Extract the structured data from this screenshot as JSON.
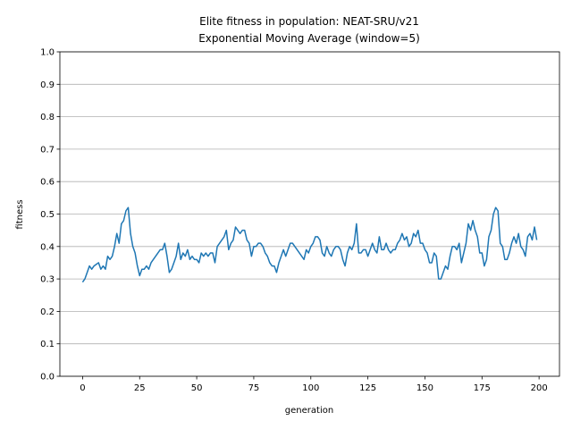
{
  "chart_data": {
    "type": "line",
    "title": [
      "Elite fitness in population: NEAT-SRU/v21",
      "Exponential Moving Average (window=5)"
    ],
    "xlabel": "generation",
    "ylabel": "fitness",
    "xlim": [
      -9.95,
      208.95
    ],
    "xticks": [
      0,
      25,
      50,
      75,
      100,
      125,
      150,
      175,
      200
    ],
    "ylim": [
      0,
      1
    ],
    "yticks": [
      {
        "value": 0,
        "label": "0.0"
      },
      0.1,
      0.2,
      0.3,
      0.4,
      0.5,
      0.6,
      0.7,
      0.8,
      0.9,
      {
        "value": 1,
        "label": "1.0"
      }
    ],
    "grid": "y",
    "series": [
      {
        "color": "#1f77b4",
        "x": [
          0,
          1,
          2,
          3,
          4,
          5,
          6,
          7,
          8,
          9,
          10,
          11,
          12,
          13,
          14,
          15,
          16,
          17,
          18,
          19,
          20,
          21,
          22,
          23,
          24,
          25,
          26,
          27,
          28,
          29,
          30,
          31,
          32,
          33,
          34,
          35,
          36,
          37,
          38,
          39,
          40,
          41,
          42,
          43,
          44,
          45,
          46,
          47,
          48,
          49,
          50,
          51,
          52,
          53,
          54,
          55,
          56,
          57,
          58,
          59,
          60,
          61,
          62,
          63,
          64,
          65,
          66,
          67,
          68,
          69,
          70,
          71,
          72,
          73,
          74,
          75,
          76,
          77,
          78,
          79,
          80,
          81,
          82,
          83,
          84,
          85,
          86,
          87,
          88,
          89,
          90,
          91,
          92,
          93,
          94,
          95,
          96,
          97,
          98,
          99,
          100,
          101,
          102,
          103,
          104,
          105,
          106,
          107,
          108,
          109,
          110,
          111,
          112,
          113,
          114,
          115,
          116,
          117,
          118,
          119,
          120,
          121,
          122,
          123,
          124,
          125,
          126,
          127,
          128,
          129,
          130,
          131,
          132,
          133,
          134,
          135,
          136,
          137,
          138,
          139,
          140,
          141,
          142,
          143,
          144,
          145,
          146,
          147,
          148,
          149,
          150,
          151,
          152,
          153,
          154,
          155,
          156,
          157,
          158,
          159,
          160,
          161,
          162,
          163,
          164,
          165,
          166,
          167,
          168,
          169,
          170,
          171,
          172,
          173,
          174,
          175,
          176,
          177,
          178,
          179,
          180,
          181,
          182,
          183,
          184,
          185,
          186,
          187,
          188,
          189,
          190,
          191,
          192,
          193,
          194,
          195,
          196,
          197,
          198,
          199
        ],
        "values": [
          0.29,
          0.3,
          0.32,
          0.34,
          0.33,
          0.34,
          0.345,
          0.35,
          0.33,
          0.34,
          0.33,
          0.37,
          0.36,
          0.37,
          0.4,
          0.44,
          0.41,
          0.47,
          0.48,
          0.51,
          0.52,
          0.44,
          0.4,
          0.38,
          0.34,
          0.31,
          0.33,
          0.33,
          0.34,
          0.33,
          0.35,
          0.36,
          0.37,
          0.38,
          0.39,
          0.39,
          0.41,
          0.37,
          0.32,
          0.33,
          0.35,
          0.37,
          0.41,
          0.36,
          0.38,
          0.37,
          0.39,
          0.36,
          0.37,
          0.36,
          0.36,
          0.35,
          0.38,
          0.37,
          0.38,
          0.37,
          0.38,
          0.38,
          0.35,
          0.4,
          0.41,
          0.42,
          0.43,
          0.45,
          0.39,
          0.41,
          0.42,
          0.46,
          0.45,
          0.44,
          0.45,
          0.45,
          0.42,
          0.41,
          0.37,
          0.4,
          0.4,
          0.41,
          0.41,
          0.4,
          0.38,
          0.37,
          0.35,
          0.34,
          0.34,
          0.32,
          0.35,
          0.37,
          0.39,
          0.37,
          0.39,
          0.41,
          0.41,
          0.4,
          0.39,
          0.38,
          0.37,
          0.36,
          0.39,
          0.38,
          0.4,
          0.41,
          0.43,
          0.43,
          0.42,
          0.38,
          0.37,
          0.4,
          0.38,
          0.37,
          0.39,
          0.4,
          0.4,
          0.39,
          0.36,
          0.34,
          0.38,
          0.4,
          0.39,
          0.41,
          0.47,
          0.38,
          0.38,
          0.39,
          0.39,
          0.37,
          0.39,
          0.41,
          0.39,
          0.38,
          0.43,
          0.39,
          0.39,
          0.41,
          0.39,
          0.38,
          0.39,
          0.39,
          0.41,
          0.42,
          0.44,
          0.42,
          0.43,
          0.4,
          0.41,
          0.44,
          0.43,
          0.45,
          0.41,
          0.41,
          0.39,
          0.38,
          0.35,
          0.35,
          0.38,
          0.37,
          0.3,
          0.3,
          0.32,
          0.34,
          0.33,
          0.37,
          0.4,
          0.4,
          0.39,
          0.41,
          0.35,
          0.38,
          0.41,
          0.47,
          0.45,
          0.48,
          0.45,
          0.43,
          0.38,
          0.38,
          0.34,
          0.36,
          0.43,
          0.45,
          0.5,
          0.52,
          0.51,
          0.41,
          0.4,
          0.36,
          0.36,
          0.38,
          0.41,
          0.43,
          0.41,
          0.44,
          0.4,
          0.39,
          0.37,
          0.43,
          0.44,
          0.42,
          0.46,
          0.42
        ]
      }
    ]
  }
}
